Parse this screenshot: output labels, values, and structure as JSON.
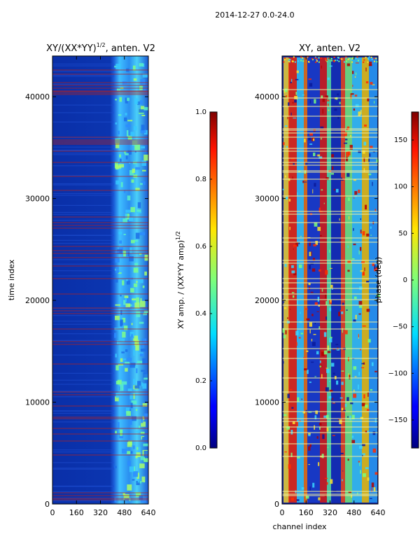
{
  "figure": {
    "suptitle": "2014-12-27 0.0-24.0"
  },
  "chart_data": [
    {
      "type": "heatmap",
      "title_main": "XY/(XX*YY)",
      "title_sup": "1/2",
      "title_rest": ", anten. V2",
      "ylabel": "time index",
      "xlabel": "",
      "xlim": [
        0,
        640
      ],
      "ylim": [
        0,
        44000
      ],
      "xticks": [
        0,
        160,
        320,
        480,
        640
      ],
      "yticks": [
        0,
        10000,
        20000,
        30000,
        40000
      ],
      "colorbar": {
        "label_main": "XY amp. / (XX*YY amp)",
        "label_sup": "1/2",
        "range": [
          0.0,
          1.0
        ],
        "ticks": [
          "0.0",
          "0.2",
          "0.4",
          "0.6",
          "0.8",
          "1.0"
        ],
        "colormap": "jet"
      }
    },
    {
      "type": "heatmap",
      "title": "XY, anten. V2",
      "ylabel": "",
      "xlabel": "channel index",
      "xlim": [
        0,
        640
      ],
      "ylim": [
        0,
        44000
      ],
      "xticks": [
        0,
        160,
        320,
        480,
        640
      ],
      "yticks": [
        0,
        10000,
        20000,
        30000,
        40000
      ],
      "colorbar": {
        "label": "phase (deg)",
        "range": [
          -180,
          180
        ],
        "ticks": [
          "150",
          "100",
          "50",
          "0",
          "−50",
          "−100",
          "−150"
        ],
        "colormap": "jet"
      }
    }
  ],
  "colors": {
    "jet_low": "#00007f",
    "jet_high": "#7f0000",
    "flag_line_left": "#b22222",
    "flag_line_right": "#f0f0a0"
  }
}
